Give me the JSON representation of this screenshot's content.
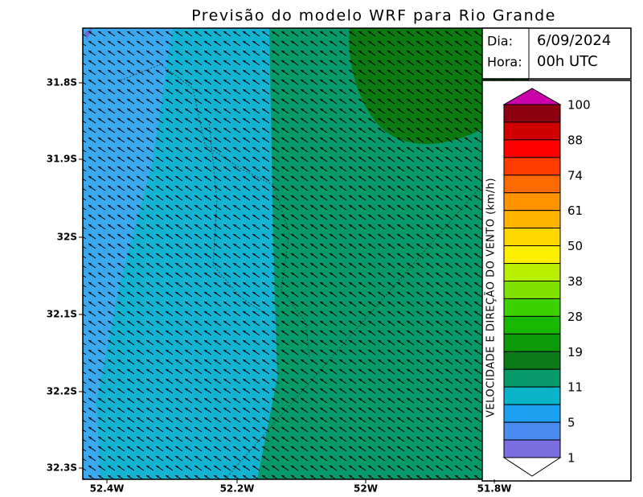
{
  "title": "Previsão do modelo WRF para Rio Grande",
  "info": {
    "day_label": "Dia:",
    "day": "6/09/2024",
    "hour_label": "Hora:",
    "hour": "00h UTC"
  },
  "latitude_labels": [
    "31.8S",
    "31.9S",
    "32S",
    "32.1S",
    "32.2S",
    "32.3S"
  ],
  "longitude_labels": [
    "52.4W",
    "52.2W",
    "52W",
    "51.8W"
  ],
  "legend": {
    "title": "VELOCIDADE E DIREÇÃO DO VENTO (km/h)",
    "labels": [
      "100",
      "88",
      "74",
      "61",
      "50",
      "38",
      "28",
      "19",
      "11",
      "5",
      "1"
    ]
  }
}
